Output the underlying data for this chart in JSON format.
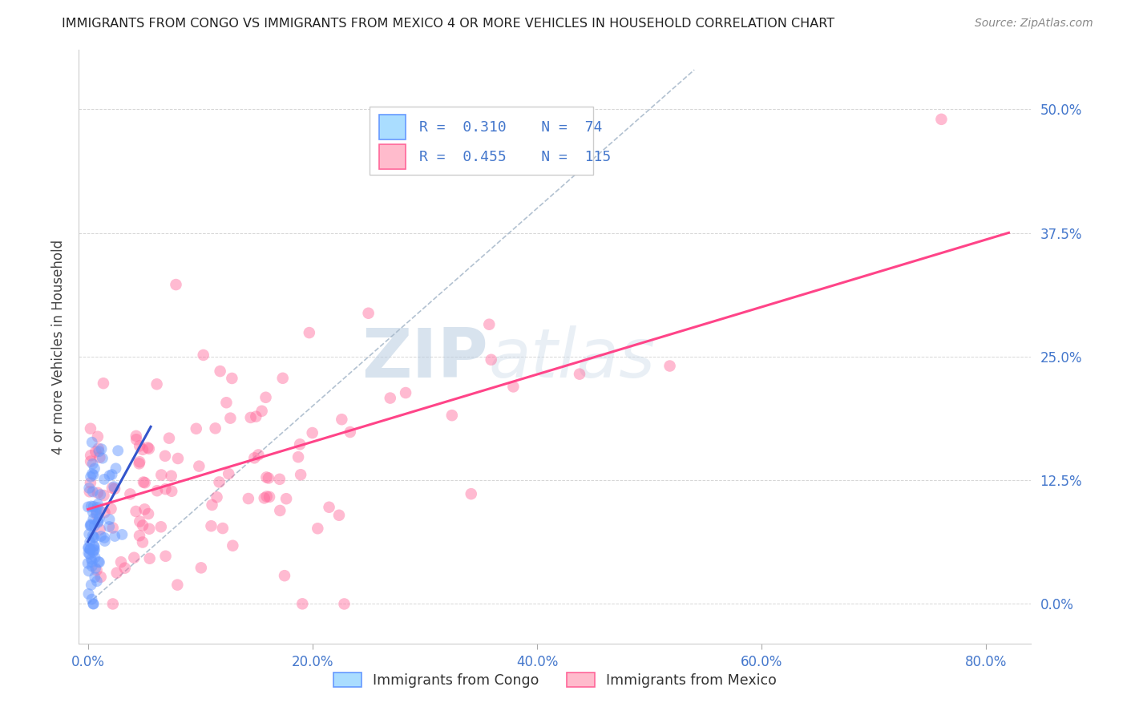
{
  "title": "IMMIGRANTS FROM CONGO VS IMMIGRANTS FROM MEXICO 4 OR MORE VEHICLES IN HOUSEHOLD CORRELATION CHART",
  "source": "Source: ZipAtlas.com",
  "ylabel": "4 or more Vehicles in Household",
  "xlabel_ticks": [
    "0.0%",
    "20.0%",
    "40.0%",
    "60.0%",
    "80.0%"
  ],
  "xlabel_vals": [
    0.0,
    0.2,
    0.4,
    0.6,
    0.8
  ],
  "ylabel_ticks": [
    "0.0%",
    "12.5%",
    "25.0%",
    "37.5%",
    "50.0%"
  ],
  "ylabel_vals": [
    0.0,
    0.125,
    0.25,
    0.375,
    0.5
  ],
  "xlim": [
    -0.008,
    0.84
  ],
  "ylim": [
    -0.04,
    0.56
  ],
  "congo_color": "#6699ff",
  "mexico_color": "#ff6699",
  "congo_R": 0.31,
  "congo_N": 74,
  "mexico_R": 0.455,
  "mexico_N": 115,
  "watermark_zip": "ZIP",
  "watermark_atlas": "atlas",
  "legend_label_congo": "Immigrants from Congo",
  "legend_label_mexico": "Immigrants from Mexico",
  "diag_color": "#aabbcc",
  "grid_color": "#cccccc",
  "tick_color": "#4477cc",
  "title_color": "#222222",
  "source_color": "#888888",
  "ylabel_color": "#444444"
}
